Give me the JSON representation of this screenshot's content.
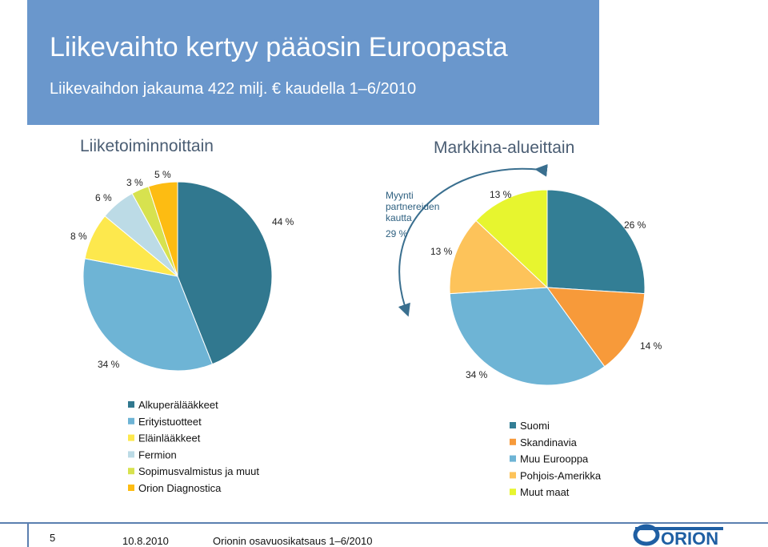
{
  "header": {
    "title": "Liikevaihto kertyy pääosin Euroopasta",
    "subtitle": "Liikevaihdon jakauma 422 milj. € kaudella 1–6/2010"
  },
  "footer": {
    "page_number": "5",
    "date": "10.8.2010",
    "report": "Orionin osavuosikatsaus 1–6/2010",
    "logo_text": "ORION"
  },
  "colors": {
    "header_bg": "#6a97cc",
    "accent": "#1f5fa3"
  },
  "chart_data": [
    {
      "type": "pie",
      "title": "Liiketoiminnoittain",
      "slices": [
        {
          "label": "Alkuperälääkkeet",
          "value": 44,
          "value_label": "44 %",
          "color": "#31788f"
        },
        {
          "label": "Erityistuotteet",
          "value": 34,
          "value_label": "34 %",
          "color": "#6eb4d5"
        },
        {
          "label": "Eläinlääkkeet",
          "value": 8,
          "value_label": "8 %",
          "color": "#fde84d"
        },
        {
          "label": "Fermion",
          "value": 6,
          "value_label": "6 %",
          "color": "#bcdbe6"
        },
        {
          "label": "Sopimusvalmistus ja muut",
          "value": 3,
          "value_label": "3 %",
          "color": "#d7e24f"
        },
        {
          "label": "Orion Diagnostica",
          "value": 5,
          "value_label": "5 %",
          "color": "#fdbc12"
        }
      ],
      "legend_position": "bottom"
    },
    {
      "type": "pie",
      "title": "Markkina-alueittain",
      "annotation": "Myynti partnereiden kautta 29 %",
      "slices": [
        {
          "label": "Suomi",
          "value": 26,
          "value_label": "26 %",
          "color": "#337e95"
        },
        {
          "label": "Skandinavia",
          "value": 14,
          "value_label": "14 %",
          "color": "#f79a3a"
        },
        {
          "label": "Muu Eurooppa",
          "value": 34,
          "value_label": "34 %",
          "color": "#6eb4d5"
        },
        {
          "label": "Pohjois-Amerikka",
          "value": 13,
          "value_label": "13 %",
          "color": "#fdc35a"
        },
        {
          "label": "Muut maat",
          "value": 13,
          "value_label": "13 %",
          "color": "#e7f52f"
        }
      ],
      "legend_position": "bottom"
    }
  ]
}
